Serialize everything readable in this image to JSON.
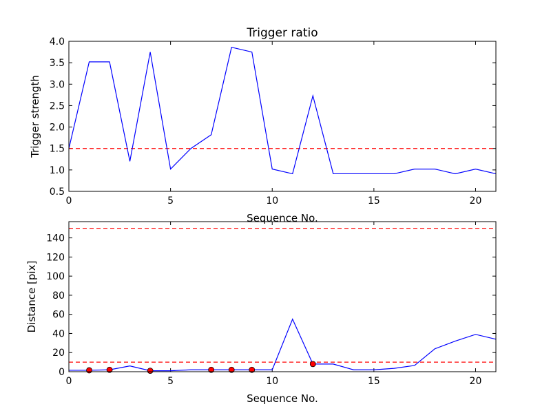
{
  "chart_data": [
    {
      "type": "line",
      "title": "Trigger ratio",
      "xlabel": "Sequence No.",
      "ylabel": "Trigger strength",
      "xlim": [
        0,
        21
      ],
      "ylim": [
        0.5,
        4.0
      ],
      "xticks": [
        0,
        5,
        10,
        15,
        20
      ],
      "yticks": [
        0.5,
        1.0,
        1.5,
        2.0,
        2.5,
        3.0,
        3.5,
        4.0
      ],
      "x": [
        0,
        1,
        2,
        3,
        4,
        5,
        6,
        7,
        8,
        9,
        10,
        11,
        12,
        13,
        14,
        15,
        16,
        17,
        18,
        19,
        20,
        21
      ],
      "series": [
        {
          "values": [
            1.5,
            3.52,
            3.52,
            1.2,
            3.75,
            1.02,
            1.5,
            1.82,
            3.86,
            3.75,
            1.02,
            0.91,
            2.73,
            0.91,
            0.91,
            0.91,
            0.91,
            1.02,
            1.02,
            0.91,
            1.02,
            0.91
          ],
          "color": "#0000ff"
        }
      ],
      "thresholds": [
        {
          "y": 1.5,
          "color": "#ff0000",
          "style": "dashed"
        }
      ],
      "grid": false
    },
    {
      "type": "line",
      "title": "",
      "xlabel": "Sequence No.",
      "ylabel": "Distance [pix]",
      "xlim": [
        0,
        21
      ],
      "ylim": [
        0,
        157
      ],
      "xticks": [
        0,
        5,
        10,
        15,
        20
      ],
      "yticks": [
        0,
        20,
        40,
        60,
        80,
        100,
        120,
        140
      ],
      "x": [
        0,
        1,
        2,
        3,
        4,
        5,
        6,
        7,
        8,
        9,
        10,
        11,
        12,
        13,
        14,
        15,
        16,
        17,
        18,
        19,
        20,
        21
      ],
      "series": [
        {
          "values": [
            1.5,
            1.5,
            2,
            6,
            1,
            1,
            2,
            2,
            2,
            2,
            2,
            55,
            8,
            8,
            2,
            2,
            3.5,
            6.5,
            24,
            32,
            39,
            34
          ],
          "color": "#0000ff"
        }
      ],
      "markers": {
        "x": [
          1,
          2,
          4,
          7,
          8,
          9,
          12
        ],
        "y": [
          1.5,
          2,
          1,
          2,
          2,
          2,
          8
        ],
        "color": "#ff0000"
      },
      "thresholds": [
        {
          "y": 10,
          "color": "#ff0000",
          "style": "dashed"
        },
        {
          "y": 150,
          "color": "#ff0000",
          "style": "dashed"
        }
      ],
      "grid": false
    }
  ]
}
